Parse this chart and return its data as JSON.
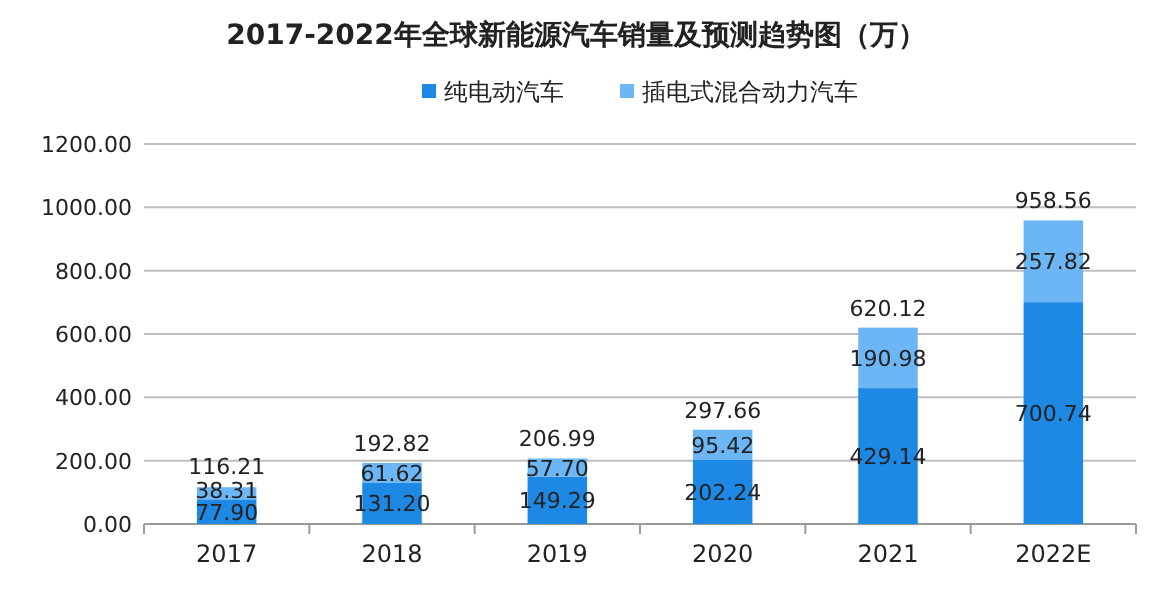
{
  "chart_data": {
    "type": "bar",
    "title": "2017-2022年全球新能源汽车销量及预测趋势图（万）",
    "stacked": true,
    "categories": [
      "2017",
      "2018",
      "2019",
      "2020",
      "2021",
      "2022E"
    ],
    "series": [
      {
        "name": "纯电动汽车",
        "color": "#1e88e5",
        "values": [
          77.9,
          131.2,
          149.29,
          202.24,
          429.14,
          700.74
        ],
        "value_labels": [
          "77.90",
          "131.20",
          "149.29",
          "202.24",
          "429.14",
          "700.74"
        ]
      },
      {
        "name": "插电式混合动力汽车",
        "color": "#6cb6f5",
        "values": [
          38.31,
          61.62,
          57.7,
          95.42,
          190.98,
          257.82
        ],
        "value_labels": [
          "38.31",
          "61.62",
          "57.70",
          "95.42",
          "190.98",
          "257.82"
        ]
      }
    ],
    "totals": [
      "116.21",
      "192.82",
      "206.99",
      "297.66",
      "620.12",
      "958.56"
    ],
    "ylim": [
      0,
      1200
    ],
    "yticks": [
      {
        "value": 0,
        "label": "0.00"
      },
      {
        "value": 200,
        "label": "200.00"
      },
      {
        "value": 400,
        "label": "400.00"
      },
      {
        "value": 600,
        "label": "600.00"
      },
      {
        "value": 800,
        "label": "800.00"
      },
      {
        "value": 1000,
        "label": "1000.00"
      },
      {
        "value": 1200,
        "label": "1200.00"
      }
    ],
    "grid": "y",
    "legend": "top"
  }
}
